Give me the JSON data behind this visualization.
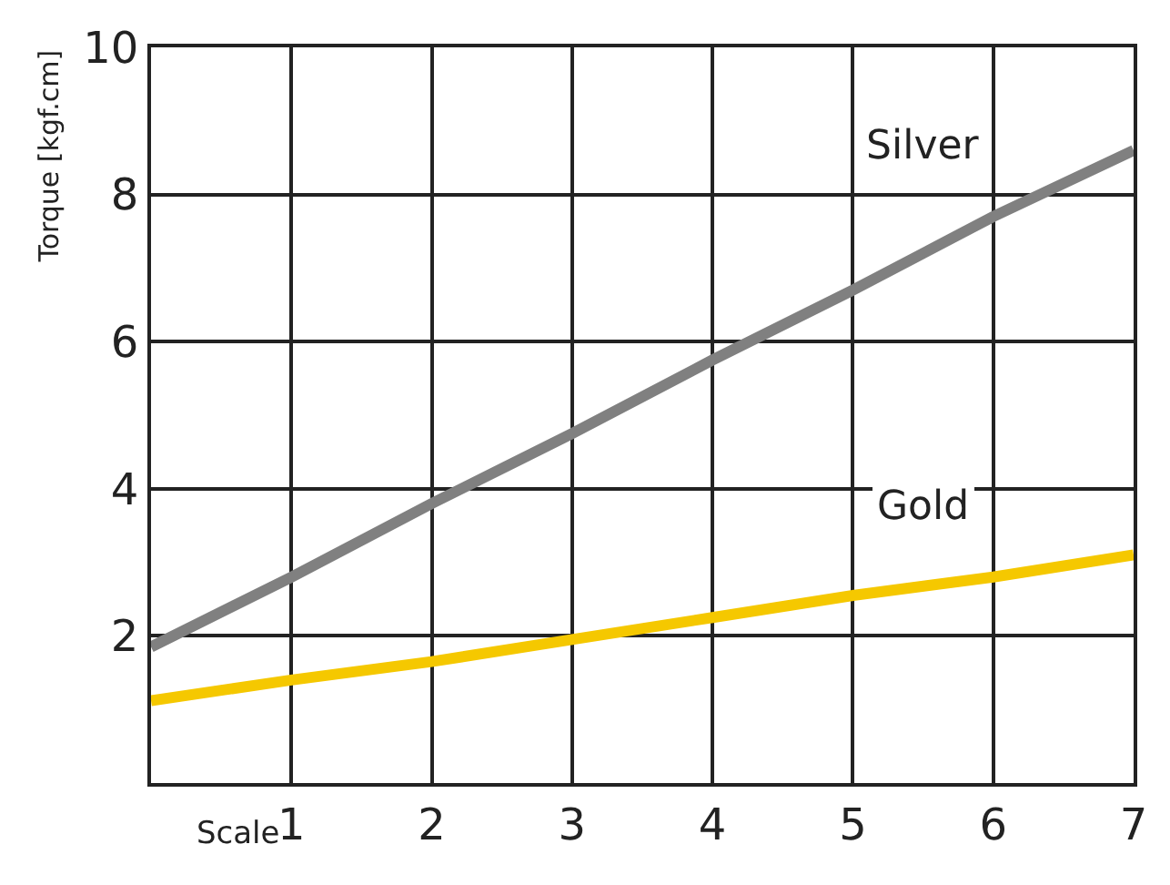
{
  "chart_data": {
    "type": "line",
    "xlabel": "Scale",
    "ylabel": "Torque [kgf.cm]",
    "x": [
      0,
      1,
      2,
      3,
      4,
      5,
      6,
      7
    ],
    "series": [
      {
        "name": "Silver",
        "color": "#808080",
        "values": [
          1.85,
          2.8,
          3.8,
          4.75,
          5.75,
          6.7,
          7.7,
          8.6
        ]
      },
      {
        "name": "Gold",
        "color": "#f5c800",
        "values": [
          1.12,
          1.4,
          1.65,
          1.95,
          2.25,
          2.55,
          2.8,
          3.1
        ]
      }
    ],
    "xlim": [
      0,
      7
    ],
    "ylim": [
      0,
      10
    ],
    "xticks": [
      {
        "value": 0,
        "label": null
      },
      1,
      2,
      3,
      4,
      5,
      6,
      7
    ],
    "yticks": [
      {
        "value": 0,
        "label": null
      },
      2,
      4,
      6,
      8,
      10
    ],
    "grid": true,
    "legend": false,
    "marker": "none",
    "line_style": "solid"
  }
}
